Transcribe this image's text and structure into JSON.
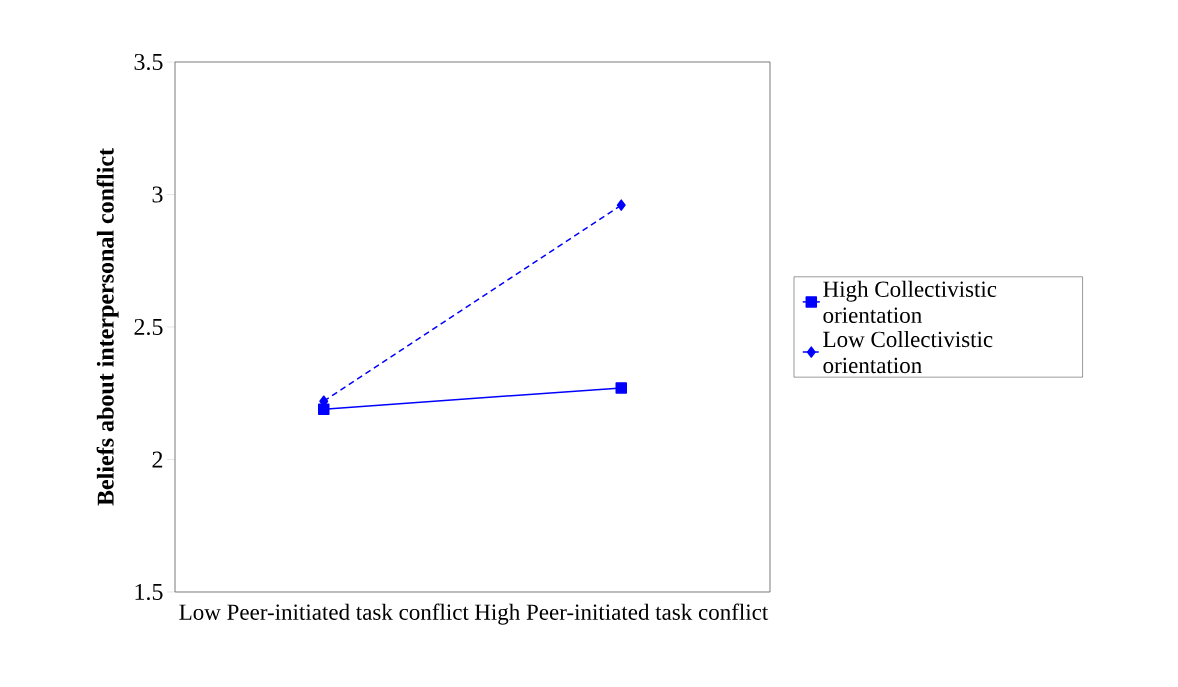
{
  "chart_data": {
    "type": "line",
    "ylabel": "Beliefs about interpersonal conflict",
    "categories": [
      "Low Peer-initiated task conflict",
      "High Peer-initiated task conflict"
    ],
    "series": [
      {
        "name": "High Collectivistic orientation",
        "color": "#0000ff",
        "values": [
          2.19,
          2.27
        ],
        "marker": "square",
        "line_style": "solid"
      },
      {
        "name": "Low Collectivistic orientation",
        "color": "#0000ff",
        "values": [
          2.22,
          2.96
        ],
        "marker": "diamond",
        "line_style": "dashed"
      }
    ],
    "ylim": [
      1.5,
      3.5
    ],
    "yticks": [
      1.5,
      2,
      2.5,
      3,
      3.5
    ],
    "grid": false,
    "legend": "right"
  }
}
